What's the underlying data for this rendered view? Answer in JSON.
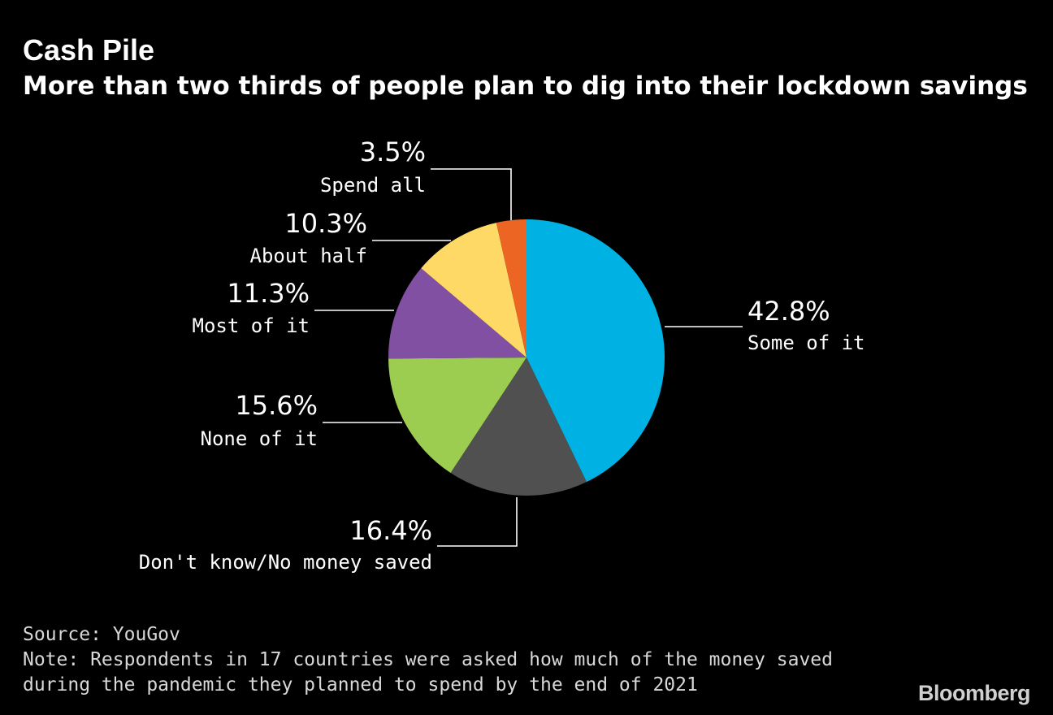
{
  "title": "Cash Pile",
  "subtitle": "More than two thirds of people plan to dig into their lockdown savings",
  "source": "Source: YouGov",
  "note_line1": "Note: Respondents in 17 countries were asked how much of the money saved",
  "note_line2": "during the pandemic they planned to spend by the end of 2021",
  "logo": "Bloomberg",
  "chart_data": {
    "type": "pie",
    "title": "Cash Pile",
    "subtitle": "More than two thirds of people plan to dig into their lockdown savings",
    "slices": [
      {
        "label": "Some of it",
        "value": 42.8,
        "display": "42.8%",
        "color": "#00b2e3"
      },
      {
        "label": "Don't know/No money saved",
        "value": 16.4,
        "display": "16.4%",
        "color": "#505050"
      },
      {
        "label": "None of it",
        "value": 15.6,
        "display": "15.6%",
        "color": "#9ccd50"
      },
      {
        "label": "Most of it",
        "value": 11.3,
        "display": "11.3%",
        "color": "#8150a2"
      },
      {
        "label": "About half",
        "value": 10.3,
        "display": "10.3%",
        "color": "#ffd966"
      },
      {
        "label": "Spend all",
        "value": 3.5,
        "display": "3.5%",
        "color": "#ec6523"
      }
    ],
    "start": "12 o'clock",
    "direction": "clockwise",
    "legend": "none (labels with leader lines)"
  }
}
